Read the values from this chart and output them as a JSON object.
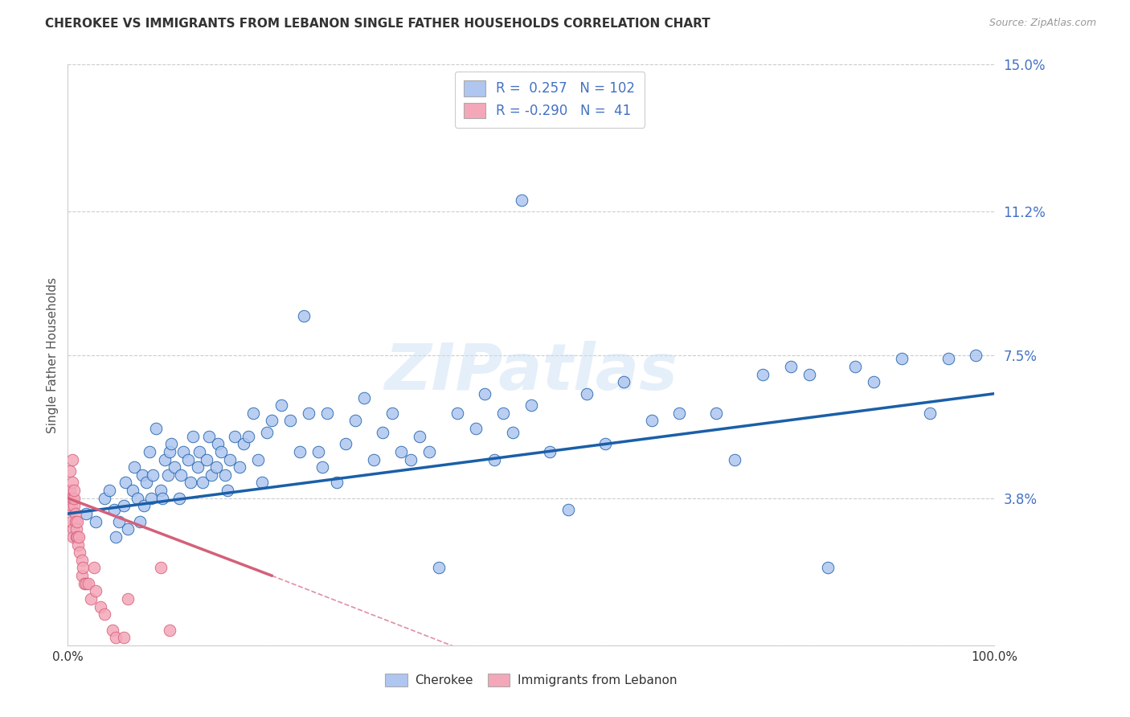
{
  "title": "CHEROKEE VS IMMIGRANTS FROM LEBANON SINGLE FATHER HOUSEHOLDS CORRELATION CHART",
  "source": "Source: ZipAtlas.com",
  "ylabel": "Single Father Households",
  "xlim": [
    0.0,
    1.0
  ],
  "ylim": [
    0.0,
    0.15
  ],
  "ytick_values": [
    0.0,
    0.038,
    0.075,
    0.112,
    0.15
  ],
  "ytick_labels": [
    "",
    "3.8%",
    "7.5%",
    "11.2%",
    "15.0%"
  ],
  "xtick_values": [
    0.0,
    0.2,
    0.4,
    0.6,
    0.8,
    1.0
  ],
  "xtick_labels": [
    "0.0%",
    "",
    "",
    "",
    "",
    "100.0%"
  ],
  "color_cherokee": "#aec6f0",
  "color_lebanon": "#f4a7b9",
  "line_cherokee": "#1a5fa8",
  "line_lebanon": "#d4607a",
  "watermark": "ZIPatlas",
  "background_color": "#ffffff",
  "cherokee_x": [
    0.02,
    0.03,
    0.04,
    0.045,
    0.05,
    0.052,
    0.055,
    0.06,
    0.062,
    0.065,
    0.07,
    0.072,
    0.075,
    0.078,
    0.08,
    0.082,
    0.085,
    0.088,
    0.09,
    0.092,
    0.095,
    0.1,
    0.102,
    0.105,
    0.108,
    0.11,
    0.112,
    0.115,
    0.12,
    0.122,
    0.125,
    0.13,
    0.132,
    0.135,
    0.14,
    0.142,
    0.145,
    0.15,
    0.152,
    0.155,
    0.16,
    0.162,
    0.165,
    0.17,
    0.172,
    0.175,
    0.18,
    0.185,
    0.19,
    0.195,
    0.2,
    0.205,
    0.21,
    0.215,
    0.22,
    0.23,
    0.24,
    0.25,
    0.255,
    0.26,
    0.27,
    0.275,
    0.28,
    0.29,
    0.3,
    0.31,
    0.32,
    0.33,
    0.34,
    0.35,
    0.36,
    0.37,
    0.38,
    0.39,
    0.4,
    0.42,
    0.44,
    0.45,
    0.46,
    0.47,
    0.48,
    0.49,
    0.5,
    0.52,
    0.54,
    0.56,
    0.58,
    0.6,
    0.63,
    0.66,
    0.7,
    0.72,
    0.75,
    0.78,
    0.8,
    0.82,
    0.85,
    0.87,
    0.9,
    0.93,
    0.95,
    0.98
  ],
  "cherokee_y": [
    0.034,
    0.032,
    0.038,
    0.04,
    0.035,
    0.028,
    0.032,
    0.036,
    0.042,
    0.03,
    0.04,
    0.046,
    0.038,
    0.032,
    0.044,
    0.036,
    0.042,
    0.05,
    0.038,
    0.044,
    0.056,
    0.04,
    0.038,
    0.048,
    0.044,
    0.05,
    0.052,
    0.046,
    0.038,
    0.044,
    0.05,
    0.048,
    0.042,
    0.054,
    0.046,
    0.05,
    0.042,
    0.048,
    0.054,
    0.044,
    0.046,
    0.052,
    0.05,
    0.044,
    0.04,
    0.048,
    0.054,
    0.046,
    0.052,
    0.054,
    0.06,
    0.048,
    0.042,
    0.055,
    0.058,
    0.062,
    0.058,
    0.05,
    0.085,
    0.06,
    0.05,
    0.046,
    0.06,
    0.042,
    0.052,
    0.058,
    0.064,
    0.048,
    0.055,
    0.06,
    0.05,
    0.048,
    0.054,
    0.05,
    0.02,
    0.06,
    0.056,
    0.065,
    0.048,
    0.06,
    0.055,
    0.115,
    0.062,
    0.05,
    0.035,
    0.065,
    0.052,
    0.068,
    0.058,
    0.06,
    0.06,
    0.048,
    0.07,
    0.072,
    0.07,
    0.02,
    0.072,
    0.068,
    0.074,
    0.06,
    0.074,
    0.075
  ],
  "lebanon_x": [
    0.001,
    0.002,
    0.002,
    0.003,
    0.003,
    0.004,
    0.004,
    0.005,
    0.005,
    0.005,
    0.006,
    0.006,
    0.007,
    0.007,
    0.007,
    0.008,
    0.008,
    0.009,
    0.009,
    0.01,
    0.01,
    0.011,
    0.012,
    0.013,
    0.015,
    0.015,
    0.016,
    0.018,
    0.02,
    0.022,
    0.025,
    0.028,
    0.03,
    0.035,
    0.04,
    0.048,
    0.052,
    0.06,
    0.065,
    0.1,
    0.11
  ],
  "lebanon_y": [
    0.038,
    0.04,
    0.045,
    0.035,
    0.038,
    0.032,
    0.036,
    0.042,
    0.038,
    0.048,
    0.03,
    0.028,
    0.036,
    0.038,
    0.04,
    0.034,
    0.032,
    0.028,
    0.03,
    0.028,
    0.032,
    0.026,
    0.028,
    0.024,
    0.022,
    0.018,
    0.02,
    0.016,
    0.016,
    0.016,
    0.012,
    0.02,
    0.014,
    0.01,
    0.008,
    0.004,
    0.002,
    0.002,
    0.012,
    0.02,
    0.004
  ],
  "cherokee_trend": [
    0.0,
    1.0,
    0.034,
    0.065
  ],
  "lebanon_solid": [
    0.0,
    0.22,
    0.038,
    0.018
  ],
  "lebanon_dashed": [
    0.22,
    0.65,
    0.018,
    -0.022
  ],
  "title_color": "#333333",
  "tick_color": "#4472c4",
  "grid_color": "#cccccc",
  "ylabel_color": "#555555"
}
